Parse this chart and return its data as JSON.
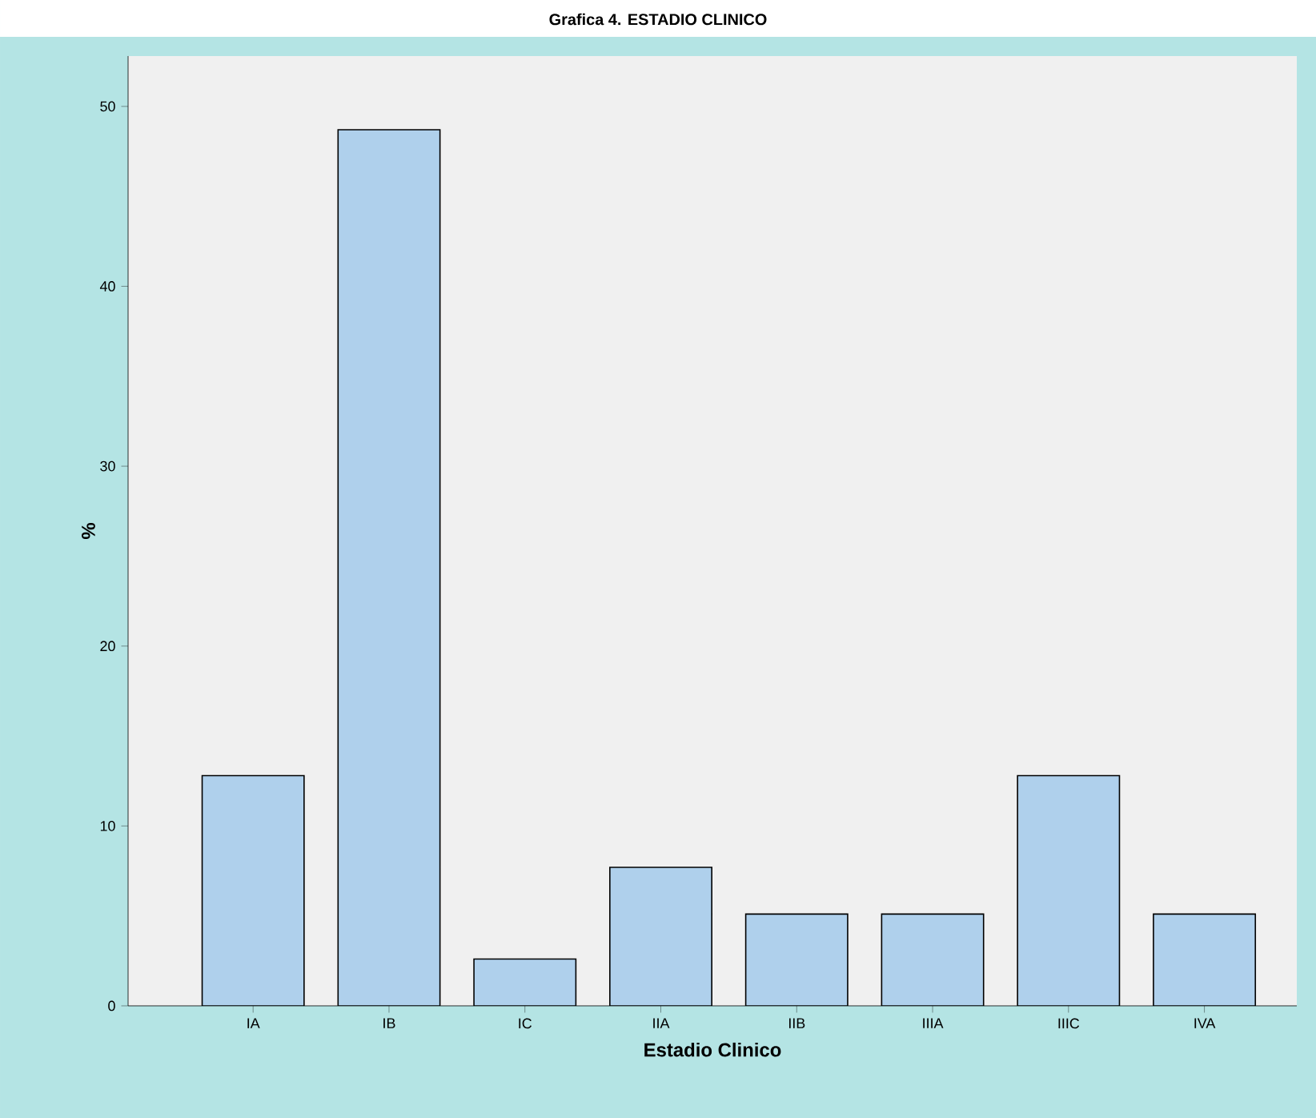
{
  "chart_data": {
    "type": "bar",
    "title": "Grafica 4. ESTADIO CLINICO",
    "xlabel": "Estadio Clinico",
    "ylabel": "%",
    "categories": [
      "IA",
      "IB",
      "IC",
      "IIA",
      "IIB",
      "IIIA",
      "IIIC",
      "IVA"
    ],
    "values": [
      12.8,
      48.7,
      2.6,
      7.7,
      5.1,
      5.1,
      12.8,
      5.1
    ],
    "color": "#afd0ec",
    "ylim": [
      0,
      52.8
    ],
    "yticks": [
      0,
      10,
      20,
      30,
      40,
      50
    ],
    "grid": false
  }
}
